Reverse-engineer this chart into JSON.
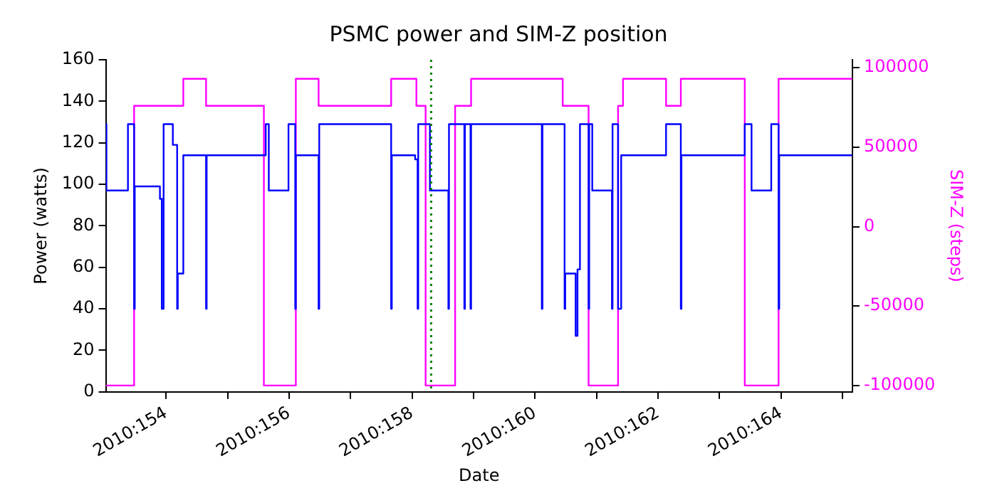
{
  "chart_data": {
    "type": "step",
    "title": "PSMC power and SIM-Z position",
    "xlabel": "Date",
    "ylabel": "Power (watts)",
    "y2label": "SIM-Z (steps)",
    "xlim": [
      "2010-06-02T00:29",
      "2010-06-14T03:50"
    ],
    "xticks": [
      {
        "value": "2010-06-03",
        "label": "2010:154"
      },
      {
        "value": "2010-06-04",
        "label": null
      },
      {
        "value": "2010-06-05",
        "label": "2010:156"
      },
      {
        "value": "2010-06-06",
        "label": null
      },
      {
        "value": "2010-06-07",
        "label": "2010:158"
      },
      {
        "value": "2010-06-08",
        "label": null
      },
      {
        "value": "2010-06-09",
        "label": "2010:160"
      },
      {
        "value": "2010-06-10",
        "label": null
      },
      {
        "value": "2010-06-11",
        "label": "2010:162"
      },
      {
        "value": "2010-06-12",
        "label": null
      },
      {
        "value": "2010-06-13",
        "label": "2010:164"
      },
      {
        "value": "2010-06-14",
        "label": null
      }
    ],
    "ylim": [
      0,
      160
    ],
    "yticks": [
      0,
      20,
      40,
      60,
      80,
      100,
      120,
      140,
      160
    ],
    "y2lim": [
      -104000,
      105000
    ],
    "y2ticks": [
      -100000,
      -50000,
      0,
      50000,
      100000
    ],
    "grid": false,
    "legend": false,
    "ref_lines": [
      {
        "axis": "x",
        "value": "2010-06-07T07:26",
        "color": "#008000",
        "line_style": "dotted"
      }
    ],
    "series": [
      {
        "color": "#0000ff",
        "x": [
          "2010-06-02T00:29",
          "2010-06-02T00:43",
          "2010-06-02T09:07",
          "2010-06-02T11:31",
          "2010-06-02T11:46",
          "2010-06-02T21:36",
          "2010-06-02T22:19",
          "2010-06-02T23:02",
          "2010-06-03T02:38",
          "2010-06-03T04:19",
          "2010-06-03T04:34",
          "2010-06-03T06:43",
          "2010-06-03T15:36",
          "2010-06-03T15:50",
          "2010-06-04T14:53",
          "2010-06-04T16:05",
          "2010-06-04T23:46",
          "2010-06-05T02:24",
          "2010-06-05T02:38",
          "2010-06-05T11:31",
          "2010-06-05T11:46",
          "2010-06-06T15:50",
          "2010-06-06T16:05",
          "2010-06-07T01:12",
          "2010-06-07T02:10",
          "2010-06-07T02:24",
          "2010-06-07T06:58",
          "2010-06-07T14:10",
          "2010-06-07T14:24",
          "2010-06-07T20:24",
          "2010-06-07T20:38",
          "2010-06-07T22:48",
          "2010-06-07T23:02",
          "2010-06-09T02:38",
          "2010-06-09T02:53",
          "2010-06-09T11:31",
          "2010-06-09T11:46",
          "2010-06-09T15:50",
          "2010-06-09T16:34",
          "2010-06-09T17:31",
          "2010-06-09T20:53",
          "2010-06-09T21:07",
          "2010-06-09T22:19",
          "2010-06-10T06:00",
          "2010-06-10T06:14",
          "2010-06-10T08:24",
          "2010-06-10T09:36",
          "2010-06-11T03:07",
          "2010-06-11T08:53",
          "2010-06-11T09:07",
          "2010-06-12T09:50",
          "2010-06-12T12:29",
          "2010-06-12T20:10",
          "2010-06-12T23:02",
          "2010-06-12T23:17",
          "2010-06-14T03:50"
        ],
        "values": [
          129,
          97,
          129,
          40,
          99,
          93,
          40,
          129,
          119,
          40,
          57,
          114,
          40,
          114,
          129,
          97,
          129,
          40,
          114,
          40,
          129,
          40,
          114,
          112,
          40,
          129,
          97,
          40,
          129,
          40,
          129,
          40,
          129,
          40,
          129,
          40,
          57,
          27,
          59,
          129,
          40,
          129,
          97,
          40,
          129,
          40,
          114,
          129,
          40,
          114,
          129,
          97,
          129,
          40,
          114,
          114
        ]
      },
      {
        "color": "#ff00ff",
        "axis": "y2",
        "x": [
          "2010-06-02T00:29",
          "2010-06-02T11:31",
          "2010-06-03T06:43",
          "2010-06-03T15:36",
          "2010-06-04T14:10",
          "2010-06-05T02:38",
          "2010-06-05T11:31",
          "2010-06-06T15:50",
          "2010-06-07T01:41",
          "2010-06-07T05:17",
          "2010-06-07T16:48",
          "2010-06-07T23:02",
          "2010-06-09T10:48",
          "2010-06-09T20:53",
          "2010-06-10T08:24",
          "2010-06-10T10:19",
          "2010-06-11T03:07",
          "2010-06-11T08:53",
          "2010-06-12T09:50",
          "2010-06-12T23:02",
          "2010-06-14T03:50"
        ],
        "values": [
          -100000,
          76000,
          93000,
          76000,
          -100000,
          93000,
          76000,
          93000,
          76000,
          -100000,
          76000,
          93000,
          76000,
          -100000,
          76000,
          93000,
          76000,
          93000,
          -100000,
          93000,
          93000
        ]
      }
    ]
  }
}
